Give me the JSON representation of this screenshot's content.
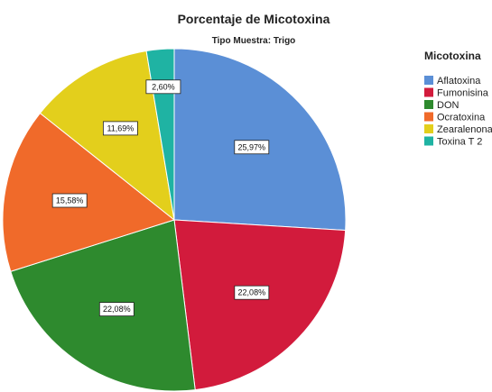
{
  "chart_data": {
    "type": "pie",
    "title": "Porcentaje de Micotoxina",
    "subtitle": "Tipo Muestra: Trigo",
    "legend": {
      "title": "Micotoxina",
      "placement": "right"
    },
    "slices": [
      {
        "label": "Aflatoxina",
        "value": 25.97,
        "display": "25,97%",
        "color": "#5b8fd6"
      },
      {
        "label": "Fumonisina",
        "value": 22.08,
        "display": "22,08%",
        "color": "#d21b3c"
      },
      {
        "label": "DON",
        "value": 22.08,
        "display": "22,08%",
        "color": "#2e8a2e"
      },
      {
        "label": "Ocratoxina",
        "value": 15.58,
        "display": "15,58%",
        "color": "#f06a2a"
      },
      {
        "label": "Zearalenona",
        "value": 11.69,
        "display": "11,69%",
        "color": "#e3cf1c"
      },
      {
        "label": "Toxina T 2",
        "value": 2.6,
        "display": "2,60%",
        "color": "#1fb3a3"
      }
    ]
  }
}
